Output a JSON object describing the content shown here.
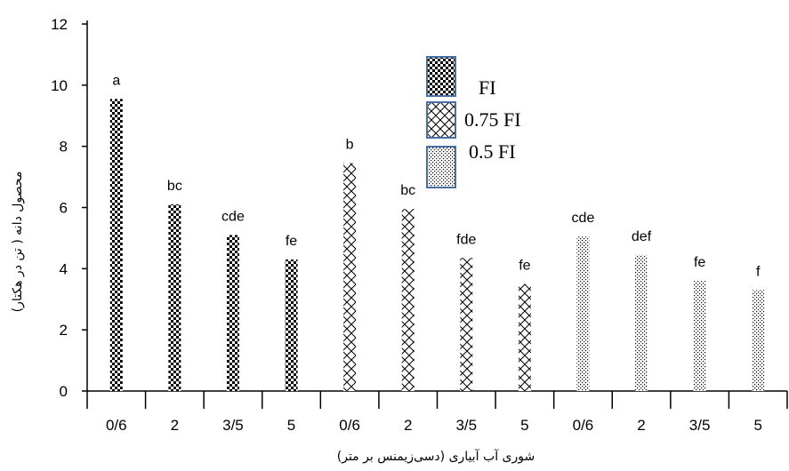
{
  "chart_data": {
    "type": "bar",
    "title": "",
    "xlabel": "شوری آب آبیاری (دسی‌زیمنس بر متر)",
    "ylabel": "محصول دانه ( تن در هکتار)",
    "ylim": [
      0,
      12
    ],
    "yticks": [
      "0",
      "2",
      "4",
      "6",
      "8",
      "10",
      "12"
    ],
    "categories": [
      "0/6",
      "2",
      "3/5",
      "5",
      "0/6",
      "2",
      "3/5",
      "5",
      "0/6",
      "2",
      "3/5",
      "5"
    ],
    "series": [
      {
        "name": "FI",
        "pattern": "dots-dense",
        "values": [
          9.55,
          6.1,
          5.1,
          4.3,
          null,
          null,
          null,
          null,
          null,
          null,
          null,
          null
        ]
      },
      {
        "name": "0.75 FI",
        "pattern": "crosshatch",
        "values": [
          null,
          null,
          null,
          null,
          7.45,
          5.95,
          4.35,
          3.5,
          null,
          null,
          null,
          null
        ]
      },
      {
        "name": "0.5 FI",
        "pattern": "dots-sparse",
        "values": [
          null,
          null,
          null,
          null,
          null,
          null,
          null,
          null,
          5.05,
          4.45,
          3.6,
          3.3
        ]
      }
    ],
    "bar_labels": [
      "a",
      "bc",
      "cde",
      "fe",
      "b",
      "bc",
      "fde",
      "fe",
      "cde",
      "def",
      "fe",
      "f"
    ],
    "grid": false,
    "legend": "top-center"
  }
}
